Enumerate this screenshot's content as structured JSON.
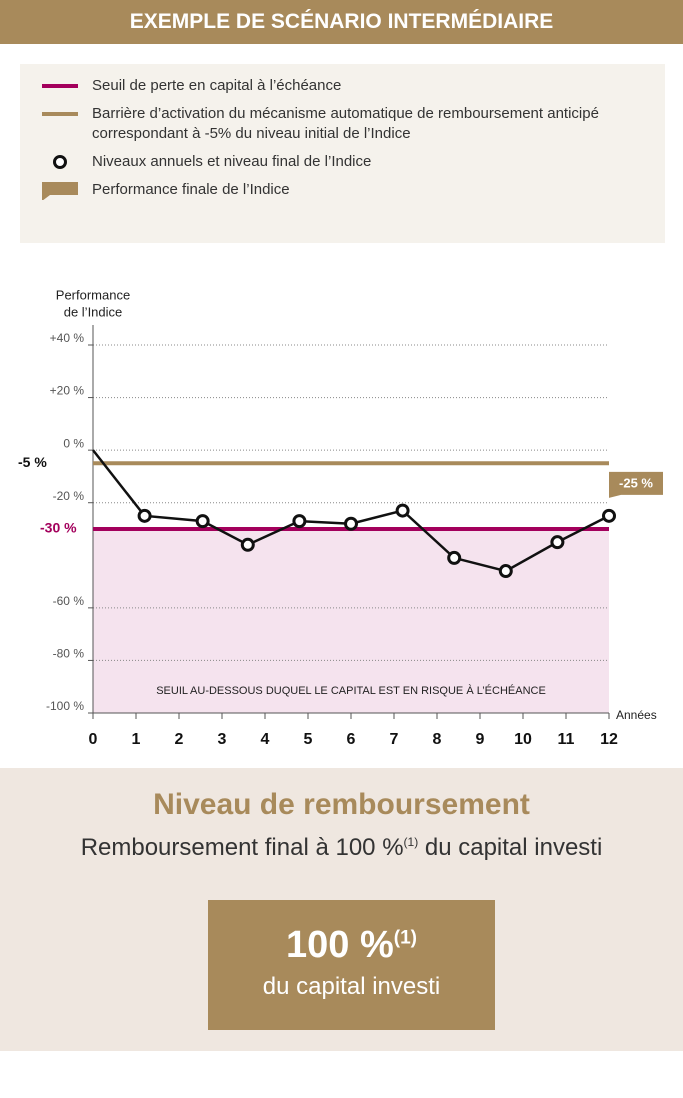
{
  "header": {
    "title": "EXEMPLE DE SCÉNARIO INTERMÉDIAIRE"
  },
  "chart_data": {
    "type": "line",
    "y_label": [
      "Performance",
      "de l’Indice"
    ],
    "x_label": "Années",
    "legend": [
      {
        "text": "Seuil de perte en capital à l’échéance",
        "icon": "line",
        "color": "#a3005c"
      },
      {
        "text": "Barrière d’activation du mécanisme automatique de remboursement anticipé correspondant à -5% du niveau initial de l’Indice",
        "icon": "line",
        "color": "#a88a5b"
      },
      {
        "text": "Niveaux annuels et niveau final de l’Indice",
        "icon": "circle",
        "color": "#111111"
      },
      {
        "text": "Performance finale de l’Indice",
        "icon": "callout",
        "color": "#a88a5b"
      }
    ],
    "reference_lines": [
      {
        "value": -30,
        "label": "-30 %",
        "color": "#a3005c"
      },
      {
        "value": -5,
        "label": "-5 %",
        "color": "#a88a5b"
      }
    ],
    "region": {
      "from": -30,
      "to": -100,
      "label": "SEUIL AU-DESSOUS DUQUEL LE CAPITAL EST EN RISQUE À L’ÉCHÉANCE",
      "color": "#f5e3ee"
    },
    "series": [
      {
        "color": "#111111",
        "x": [
          0,
          1.2,
          2.55,
          3.6,
          4.8,
          6,
          7.2,
          8.4,
          9.6,
          10.8,
          12
        ],
        "values": [
          0,
          -25,
          -27,
          -36,
          -27,
          -28,
          -23,
          -41,
          -46,
          -35,
          -25
        ],
        "value_labels": [
          null,
          null,
          null,
          null,
          null,
          null,
          null,
          null,
          null,
          null,
          "-25 %"
        ],
        "label_color": "#a88a5b"
      }
    ],
    "xlim": [
      0,
      12
    ],
    "xticks": [
      0,
      1,
      2,
      3,
      4,
      5,
      6,
      7,
      8,
      9,
      10,
      11,
      12
    ],
    "ylim": [
      -100,
      40
    ],
    "yticks": [
      {
        "value": 40,
        "label": "+40 %"
      },
      {
        "value": 20,
        "label": "+20 %"
      },
      {
        "value": 0,
        "label": "0 %"
      },
      {
        "value": -20,
        "label": "-20 %"
      },
      {
        "value": -60,
        "label": "-60 %"
      },
      {
        "value": -80,
        "label": "-80 %"
      },
      {
        "value": -100,
        "label": "-100 %"
      }
    ],
    "grid": true
  },
  "footer": {
    "title": "Niveau de remboursement",
    "subtitle": {
      "text": "Remboursement final à 100 %",
      "sup": "(1)",
      "rest": " du capital investi"
    },
    "box": {
      "value": "100 %",
      "sup": "(1)",
      "text": "du capital investi"
    }
  }
}
